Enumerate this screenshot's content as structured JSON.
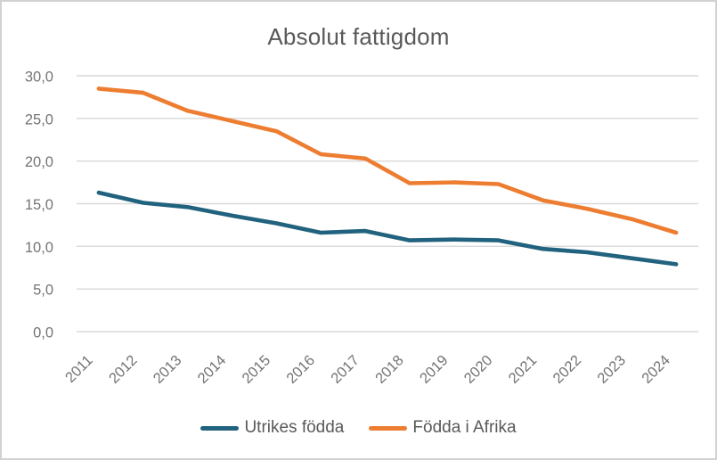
{
  "chart_data": {
    "type": "line",
    "title": "Absolut fattigdom",
    "categories": [
      "2011",
      "2012",
      "2013",
      "2014",
      "2015",
      "2016",
      "2017",
      "2018",
      "2019",
      "2020",
      "2021",
      "2022",
      "2023",
      "2024"
    ],
    "series": [
      {
        "name": "Utrikes födda",
        "color": "#21627E",
        "values": [
          16.3,
          15.1,
          14.6,
          13.6,
          12.7,
          11.6,
          11.8,
          10.7,
          10.8,
          10.7,
          9.7,
          9.3,
          8.6,
          7.9
        ]
      },
      {
        "name": "Födda i Afrika",
        "color": "#ED7D31",
        "values": [
          28.5,
          28.0,
          25.9,
          24.7,
          23.5,
          20.8,
          20.3,
          17.4,
          17.5,
          17.3,
          15.4,
          14.4,
          13.2,
          11.6
        ]
      }
    ],
    "xlabel": "",
    "ylabel": "",
    "ylim": [
      0,
      30
    ],
    "y_tick_step": 5,
    "y_tick_labels": [
      "0,0",
      "5,0",
      "10,0",
      "15,0",
      "20,0",
      "25,0",
      "30,0"
    ],
    "grid": "horizontal",
    "legend_position": "bottom"
  },
  "styles": {
    "grid_color": "#D9D9D9",
    "axis_text_color": "#747474",
    "title_color": "#595959",
    "legend_text_color": "#595959",
    "frame_border_color": "#D2D2D2",
    "background_color": "#FFFFFF"
  }
}
